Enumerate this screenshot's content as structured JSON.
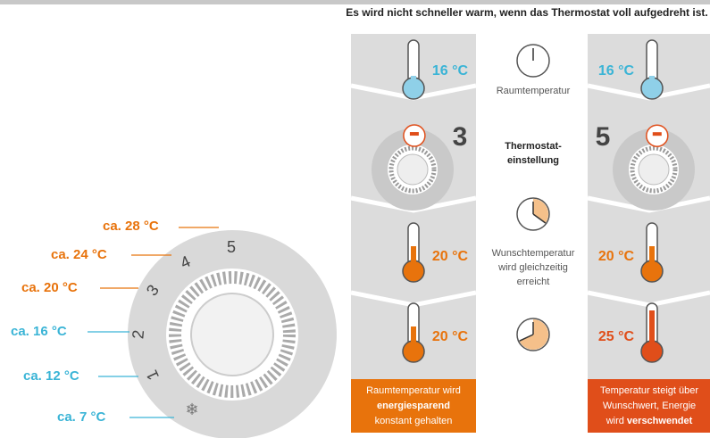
{
  "title": "Es wird nicht schneller warm, wenn das Thermostat voll aufgedreht ist.",
  "dial": {
    "labels": [
      "ca. 28 °C",
      "ca. 24 °C",
      "ca. 20 °C",
      "ca. 16 °C",
      "ca. 12 °C",
      "ca. 7 °C"
    ],
    "numbers": [
      "5",
      "4",
      "3",
      "2",
      "1"
    ]
  },
  "middle": {
    "room": "Raumtemperatur",
    "setting": [
      "Thermostat-",
      "einstellung"
    ],
    "target": [
      "Wunschtemperatur",
      "wird gleichzeitig",
      "erreicht"
    ]
  },
  "left": {
    "start": "16 °C",
    "setting": "3",
    "after1": "20 °C",
    "after2": "20 °C",
    "caption": [
      "Raumtemperatur wird",
      "energiesparend",
      "konstant gehalten"
    ]
  },
  "right": {
    "start": "16 °C",
    "setting": "5",
    "after1": "20 °C",
    "after2": "25 °C",
    "caption": [
      "Temperatur steigt über",
      "Wunschwert, Energie",
      "wird",
      "verschwendet"
    ]
  }
}
